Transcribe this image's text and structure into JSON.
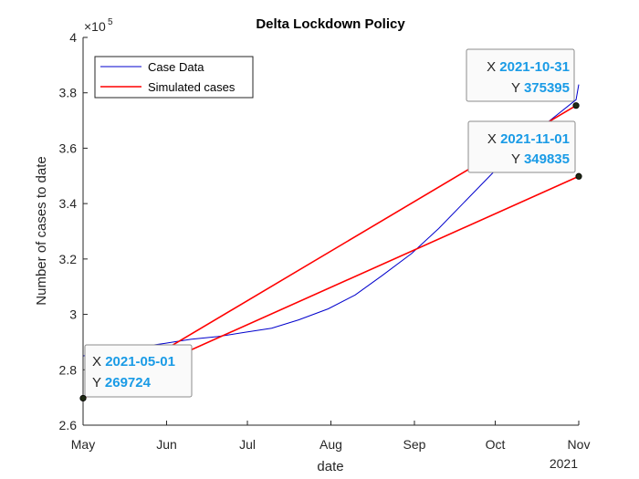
{
  "chart_data": {
    "type": "line",
    "title": "Delta Lockdown Policy",
    "xlabel": "date",
    "ylabel": "Number of cases to date",
    "y_exponent": "×10^5",
    "y_exponent_base": "×10",
    "y_exponent_power": "5",
    "xlim": [
      "2021-05-01",
      "2021-11-01"
    ],
    "ylim": [
      260000,
      400000
    ],
    "x_ticks": [
      {
        "date": "2021-05-01",
        "label": "May"
      },
      {
        "date": "2021-06-01",
        "label": "Jun"
      },
      {
        "date": "2021-07-01",
        "label": "Jul"
      },
      {
        "date": "2021-08-01",
        "label": "Aug"
      },
      {
        "date": "2021-09-01",
        "label": "Sep"
      },
      {
        "date": "2021-10-01",
        "label": "Oct"
      },
      {
        "date": "2021-11-01",
        "label": "Nov"
      }
    ],
    "x_year_label": "2021",
    "y_ticks": [
      {
        "value": 260000,
        "label": "2.6"
      },
      {
        "value": 280000,
        "label": "2.8"
      },
      {
        "value": 300000,
        "label": "3"
      },
      {
        "value": 320000,
        "label": "3.2"
      },
      {
        "value": 340000,
        "label": "3.4"
      },
      {
        "value": 360000,
        "label": "3.6"
      },
      {
        "value": 380000,
        "label": "3.8"
      },
      {
        "value": 400000,
        "label": "4"
      }
    ],
    "grid": false,
    "legend_position": "top-left",
    "series": [
      {
        "name": "Case Data",
        "color": "#0000cc",
        "points": [
          [
            "2021-05-01",
            285000
          ],
          [
            "2021-05-10",
            286500
          ],
          [
            "2021-05-20",
            288000
          ],
          [
            "2021-05-31",
            289500
          ],
          [
            "2021-06-10",
            291000
          ],
          [
            "2021-06-20",
            292000
          ],
          [
            "2021-06-30",
            293500
          ],
          [
            "2021-07-10",
            295000
          ],
          [
            "2021-07-20",
            298000
          ],
          [
            "2021-07-31",
            302000
          ],
          [
            "2021-08-10",
            307000
          ],
          [
            "2021-08-20",
            314000
          ],
          [
            "2021-08-31",
            322000
          ],
          [
            "2021-09-10",
            331000
          ],
          [
            "2021-09-20",
            341000
          ],
          [
            "2021-09-30",
            351000
          ],
          [
            "2021-10-10",
            360000
          ],
          [
            "2021-10-20",
            369000
          ],
          [
            "2021-10-31",
            377500
          ],
          [
            "2021-11-01",
            383000
          ]
        ]
      },
      {
        "name": "Simulated cases",
        "color": "#ff0000",
        "lines": [
          [
            [
              "2021-05-01",
              269724
            ],
            [
              "2021-10-31",
              375395
            ]
          ],
          [
            [
              "2021-05-01",
              269724
            ],
            [
              "2021-11-01",
              349835
            ]
          ]
        ]
      }
    ],
    "datatips": [
      {
        "x": "2021-05-01",
        "y": 269724,
        "x_text": "2021-05-01",
        "y_text": "269724"
      },
      {
        "x": "2021-10-31",
        "y": 375395,
        "x_text": "2021-10-31",
        "y_text": "375395"
      },
      {
        "x": "2021-11-01",
        "y": 349835,
        "x_text": "2021-11-01",
        "y_text": "349835"
      }
    ],
    "datatip_prefix_x": "X",
    "datatip_prefix_y": "Y"
  }
}
